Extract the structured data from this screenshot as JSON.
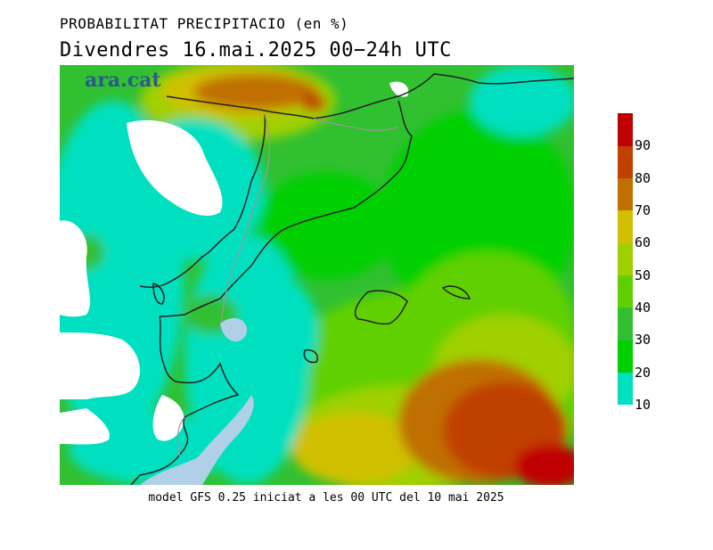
{
  "title": "PROBABILITAT PRECIPITACIO (en %)",
  "subtitle": "Divendres  16.mai.2025 00−24h UTC",
  "footer": "model GFS 0.25 iniciat a les 00 UTC del 10 mai 2025",
  "logo": "ara.cat",
  "colorbar": {
    "levels": [
      {
        "label": "10",
        "color": "#00e0c0"
      },
      {
        "label": "20",
        "color": "#00d000"
      },
      {
        "label": "30",
        "color": "#30c030"
      },
      {
        "label": "40",
        "color": "#60d000"
      },
      {
        "label": "50",
        "color": "#a0d000"
      },
      {
        "label": "60",
        "color": "#d0c000"
      },
      {
        "label": "70",
        "color": "#c07000"
      },
      {
        "label": "80",
        "color": "#c04000"
      },
      {
        "label": "90",
        "color": "#c00000"
      }
    ]
  }
}
